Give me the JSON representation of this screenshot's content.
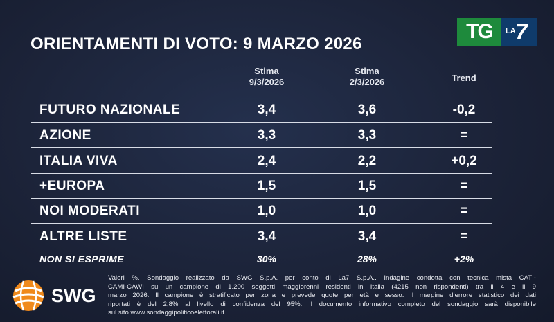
{
  "header": {
    "title": "ORIENTAMENTI DI VOTO: 9 MARZO 2026",
    "logo_tg": "TG",
    "logo_la": "LA",
    "logo_7": "7"
  },
  "table": {
    "columns": [
      {
        "lines": [
          "Stima",
          "9/3/2026"
        ]
      },
      {
        "lines": [
          "Stima",
          "2/3/2026"
        ]
      },
      {
        "lines": [
          "Trend"
        ]
      }
    ],
    "rows": [
      {
        "label": "FUTURO NAZIONALE",
        "cells": [
          "3,4",
          "3,6",
          "-0,2"
        ]
      },
      {
        "label": "AZIONE",
        "cells": [
          "3,3",
          "3,3",
          "="
        ]
      },
      {
        "label": "ITALIA VIVA",
        "cells": [
          "2,4",
          "2,2",
          "+0,2"
        ]
      },
      {
        "label": "+EUROPA",
        "cells": [
          "1,5",
          "1,5",
          "="
        ]
      },
      {
        "label": "NOI MODERATI",
        "cells": [
          "1,0",
          "1,0",
          "="
        ]
      },
      {
        "label": "ALTRE LISTE",
        "cells": [
          "3,4",
          "3,4",
          "="
        ]
      }
    ],
    "summary_row": {
      "label": "NON SI ESPRIME",
      "cells": [
        "30%",
        "28%",
        "+2%"
      ]
    }
  },
  "footer": {
    "logo": "SWG",
    "note_lines": [
      "Valori %. Sondaggio realizzato da SWG S.p.A. per conto di La7 S.p.A.. Indagine condotta con tecnica mista CATI-",
      "CAMI-CAWI su un campione di 1.200 soggetti maggiorenni residenti in Italia (4215 non rispondenti) tra il 4 e il 9",
      "marzo 2026. Il campione è stratificato per zona e prevede quote per età e sesso. Il margine d’errore statistico dei dati",
      "riportati è del 2,8% al livello di confidenza del 95%. Il documento informativo completo del sondaggio sarà disponibile",
      "sul sito www.sondaggipoliticoelettorali.it."
    ]
  }
}
